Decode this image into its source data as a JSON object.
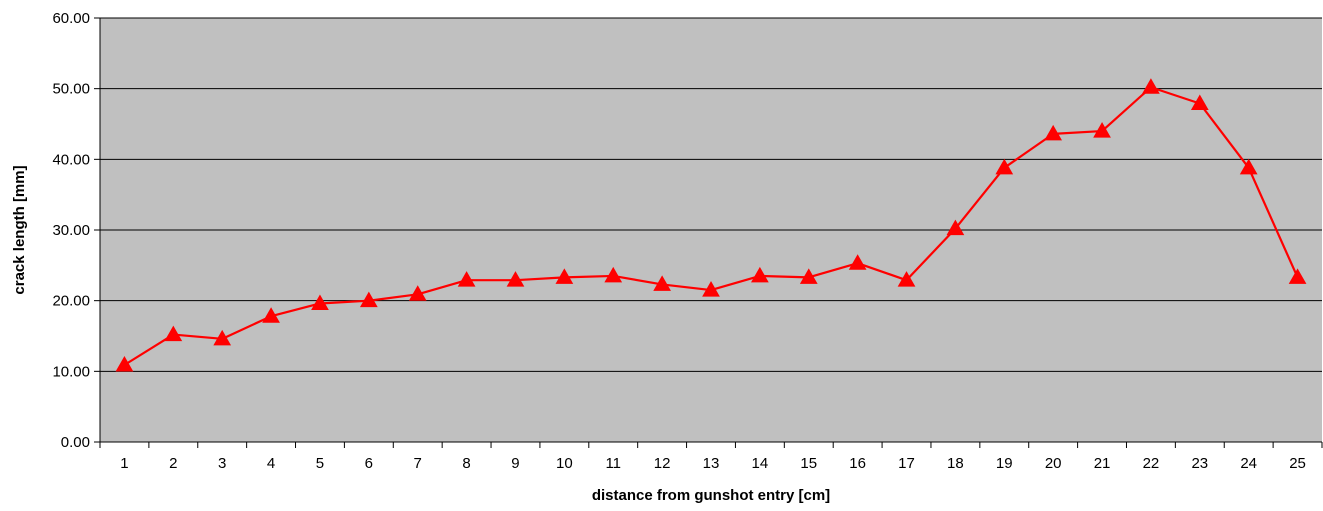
{
  "chart_data": {
    "type": "line",
    "title": "",
    "xlabel": "distance from gunshot entry [cm]",
    "ylabel": "crack length [mm]",
    "ylim": [
      0,
      60
    ],
    "y_ticks": [
      "0.00",
      "10.00",
      "20.00",
      "30.00",
      "40.00",
      "50.00",
      "60.00"
    ],
    "grid": "horizontal",
    "legend": "none",
    "categories": [
      "1",
      "2",
      "3",
      "4",
      "5",
      "6",
      "7",
      "8",
      "9",
      "10",
      "11",
      "12",
      "13",
      "14",
      "15",
      "16",
      "17",
      "18",
      "19",
      "20",
      "21",
      "22",
      "23",
      "24",
      "25"
    ],
    "series": [
      {
        "marker": "triangle",
        "color": "#ff0000",
        "values": [
          10.9,
          15.2,
          14.6,
          17.8,
          19.6,
          20.0,
          20.9,
          22.9,
          22.9,
          23.3,
          23.5,
          22.3,
          21.5,
          23.5,
          23.3,
          25.3,
          22.9,
          30.2,
          38.8,
          43.6,
          44.0,
          50.2,
          47.9,
          38.8,
          23.3
        ]
      }
    ],
    "colors": {
      "plot_background": "#c0c0c0",
      "gridline": "#000000",
      "series": "#ff0000"
    }
  }
}
